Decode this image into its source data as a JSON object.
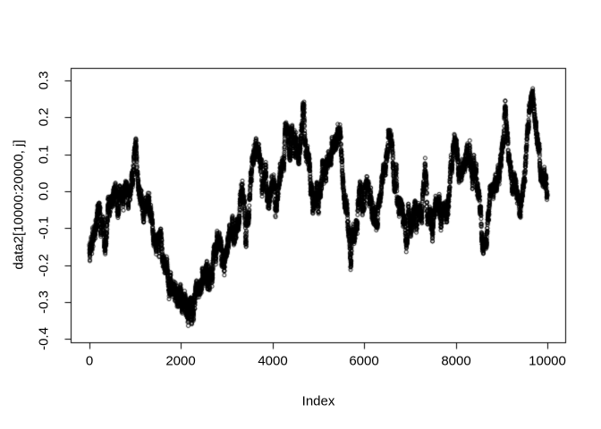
{
  "chart_data": {
    "type": "scatter",
    "title": "",
    "xlabel": "Index",
    "ylabel": "data2[10000:20000, j]",
    "x_ticks": [
      0,
      2000,
      4000,
      6000,
      8000,
      10000
    ],
    "x_tick_labels": [
      "0",
      "2000",
      "4000",
      "6000",
      "8000",
      "10000"
    ],
    "y_ticks": [
      0.3,
      0.2,
      0.1,
      0.0,
      -0.1,
      -0.2,
      -0.3,
      -0.4
    ],
    "y_tick_labels": [
      "0.3",
      "0.2",
      "0.1",
      "0.0",
      "-0.1",
      "-0.2",
      "-0.3",
      "-0.4"
    ],
    "xlim": [
      0,
      10000
    ],
    "ylim": [
      -0.4,
      0.3
    ],
    "n_points": 10001,
    "marker": "open-circle",
    "marker_color": "#000000",
    "background": "#ffffff",
    "grid": false,
    "y_extent": [
      -0.386,
      0.306
    ],
    "noise_halfwidth": 0.045,
    "trend": [
      [
        0,
        -0.14
      ],
      [
        80,
        -0.12
      ],
      [
        150,
        -0.1
      ],
      [
        250,
        -0.07
      ],
      [
        350,
        -0.09
      ],
      [
        450,
        -0.04
      ],
      [
        550,
        -0.02
      ],
      [
        650,
        -0.04
      ],
      [
        750,
        -0.07
      ],
      [
        820,
        -0.04
      ],
      [
        900,
        0.0
      ],
      [
        960,
        0.06
      ],
      [
        1000,
        0.11
      ],
      [
        1040,
        0.05
      ],
      [
        1100,
        -0.01
      ],
      [
        1180,
        -0.05
      ],
      [
        1250,
        -0.04
      ],
      [
        1320,
        -0.08
      ],
      [
        1400,
        -0.11
      ],
      [
        1500,
        -0.13
      ],
      [
        1600,
        -0.17
      ],
      [
        1700,
        -0.2
      ],
      [
        1800,
        -0.27
      ],
      [
        1900,
        -0.25
      ],
      [
        2000,
        -0.29
      ],
      [
        2100,
        -0.31
      ],
      [
        2200,
        -0.33
      ],
      [
        2250,
        -0.36
      ],
      [
        2320,
        -0.31
      ],
      [
        2400,
        -0.27
      ],
      [
        2500,
        -0.24
      ],
      [
        2600,
        -0.22
      ],
      [
        2700,
        -0.17
      ],
      [
        2800,
        -0.15
      ],
      [
        2900,
        -0.18
      ],
      [
        3000,
        -0.15
      ],
      [
        3100,
        -0.12
      ],
      [
        3200,
        -0.11
      ],
      [
        3300,
        -0.05
      ],
      [
        3360,
        -0.01
      ],
      [
        3420,
        -0.07
      ],
      [
        3500,
        0.01
      ],
      [
        3570,
        0.12
      ],
      [
        3650,
        0.13
      ],
      [
        3720,
        0.05
      ],
      [
        3780,
        0.0
      ],
      [
        3850,
        0.04
      ],
      [
        3920,
        -0.04
      ],
      [
        4000,
        0.01
      ],
      [
        4100,
        -0.01
      ],
      [
        4200,
        0.04
      ],
      [
        4300,
        0.11
      ],
      [
        4400,
        0.12
      ],
      [
        4500,
        0.08
      ],
      [
        4600,
        0.16
      ],
      [
        4680,
        0.22
      ],
      [
        4760,
        0.1
      ],
      [
        4830,
        0.02
      ],
      [
        4900,
        -0.01
      ],
      [
        5000,
        -0.03
      ],
      [
        5100,
        0.02
      ],
      [
        5200,
        0.06
      ],
      [
        5300,
        0.1
      ],
      [
        5400,
        0.16
      ],
      [
        5470,
        0.19
      ],
      [
        5550,
        0.04
      ],
      [
        5620,
        -0.06
      ],
      [
        5700,
        -0.16
      ],
      [
        5770,
        -0.17
      ],
      [
        5850,
        -0.1
      ],
      [
        5950,
        -0.04
      ],
      [
        6050,
        0.02
      ],
      [
        6150,
        -0.01
      ],
      [
        6250,
        -0.05
      ],
      [
        6350,
        -0.02
      ],
      [
        6450,
        0.08
      ],
      [
        6560,
        0.15
      ],
      [
        6650,
        0.04
      ],
      [
        6750,
        -0.04
      ],
      [
        6850,
        -0.07
      ],
      [
        6950,
        -0.09
      ],
      [
        7050,
        -0.06
      ],
      [
        7150,
        -0.08
      ],
      [
        7250,
        -0.02
      ],
      [
        7300,
        0.04
      ],
      [
        7400,
        -0.03
      ],
      [
        7500,
        -0.08
      ],
      [
        7600,
        -0.06
      ],
      [
        7700,
        -0.1
      ],
      [
        7800,
        -0.04
      ],
      [
        7900,
        0.06
      ],
      [
        8000,
        0.13
      ],
      [
        8080,
        0.03
      ],
      [
        8180,
        0.05
      ],
      [
        8300,
        0.12
      ],
      [
        8400,
        0.09
      ],
      [
        8500,
        -0.03
      ],
      [
        8600,
        -0.14
      ],
      [
        8700,
        -0.1
      ],
      [
        8800,
        0.0
      ],
      [
        8900,
        0.05
      ],
      [
        9000,
        0.14
      ],
      [
        9080,
        0.2
      ],
      [
        9160,
        0.09
      ],
      [
        9250,
        0.02
      ],
      [
        9350,
        -0.03
      ],
      [
        9430,
        -0.05
      ],
      [
        9500,
        0.06
      ],
      [
        9560,
        0.14
      ],
      [
        9640,
        0.26
      ],
      [
        9700,
        0.21
      ],
      [
        9780,
        0.17
      ],
      [
        9850,
        0.1
      ],
      [
        9920,
        0.06
      ],
      [
        10000,
        0.02
      ]
    ]
  }
}
